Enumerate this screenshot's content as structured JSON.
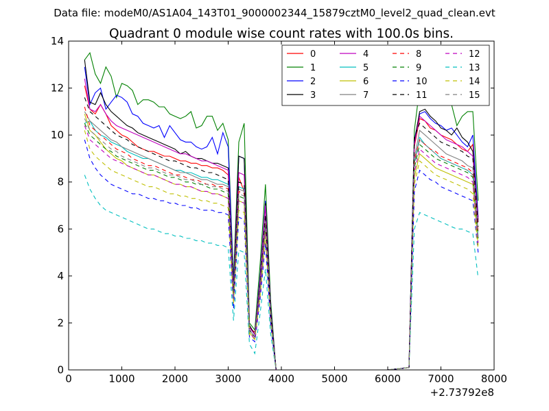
{
  "chart_data": {
    "type": "line",
    "suptitle": "Data file: modeM0/AS1A04_143T01_9000002344_15879cztM0_level2_quad_clean.evt",
    "title": "Quadrant 0 module wise count rates with 100.0s bins.",
    "xlabel": "",
    "ylabel": "",
    "x_offset_label": "+2.73792e8",
    "xlim": [
      0,
      8000
    ],
    "ylim": [
      0,
      14
    ],
    "xticks": [
      "0",
      "1000",
      "2000",
      "3000",
      "4000",
      "5000",
      "6000",
      "7000",
      "8000"
    ],
    "yticks": [
      "0",
      "2",
      "4",
      "6",
      "8",
      "10",
      "12",
      "14"
    ],
    "grid": false,
    "legend": {
      "placement": "top-right",
      "columns": 4
    },
    "x": [
      300,
      400,
      500,
      600,
      700,
      800,
      900,
      1000,
      1100,
      1200,
      1300,
      1400,
      1500,
      1600,
      1700,
      1800,
      1900,
      2000,
      2100,
      2200,
      2300,
      2400,
      2500,
      2600,
      2700,
      2800,
      2900,
      3000,
      3100,
      3200,
      3300,
      3400,
      3500,
      3600,
      3700,
      3800,
      3900,
      4000,
      5000,
      6000,
      6400,
      6500,
      6600,
      6700,
      6800,
      6900,
      7000,
      7100,
      7200,
      7300,
      7400,
      7500,
      7600,
      7700
    ],
    "series": [
      {
        "name": "0",
        "color": "#ff0000",
        "dash": "solid",
        "values": [
          12.1,
          11.1,
          10.9,
          11.3,
          10.9,
          10.4,
          10.2,
          10.0,
          9.9,
          9.7,
          9.5,
          9.4,
          9.3,
          9.3,
          9.2,
          9.1,
          9.1,
          9.0,
          8.9,
          8.9,
          8.8,
          8.8,
          8.7,
          8.7,
          8.6,
          8.6,
          8.5,
          8.3,
          3.4,
          8.2,
          7.6,
          1.8,
          1.6,
          3.8,
          7.0,
          2.5,
          0.0,
          0.0,
          0.0,
          0.0,
          0.1,
          9.5,
          10.7,
          10.6,
          10.3,
          10.2,
          10.0,
          9.9,
          9.8,
          9.6,
          9.4,
          9.3,
          9.6,
          6.3
        ]
      },
      {
        "name": "1",
        "color": "#008000",
        "dash": "solid",
        "values": [
          13.2,
          13.5,
          12.6,
          12.2,
          12.9,
          12.5,
          11.6,
          12.2,
          12.1,
          11.9,
          11.3,
          11.5,
          11.5,
          11.4,
          11.2,
          11.2,
          10.9,
          10.8,
          10.7,
          10.8,
          11.0,
          10.3,
          10.4,
          10.8,
          10.8,
          10.2,
          10.5,
          9.8,
          3.9,
          9.7,
          10.5,
          2.0,
          1.7,
          4.5,
          7.9,
          2.9,
          0.0,
          0.0,
          0.0,
          0.0,
          0.1,
          10.2,
          12.0,
          11.6,
          11.9,
          11.7,
          11.5,
          11.4,
          11.3,
          10.4,
          10.8,
          11.0,
          11.0,
          7.2
        ]
      },
      {
        "name": "2",
        "color": "#0000ff",
        "dash": "solid",
        "values": [
          12.9,
          11.3,
          11.8,
          12.0,
          11.1,
          11.4,
          11.7,
          11.6,
          11.4,
          10.9,
          10.8,
          10.5,
          10.4,
          10.3,
          10.4,
          9.9,
          10.4,
          10.1,
          9.8,
          9.7,
          9.7,
          9.5,
          9.4,
          9.5,
          9.9,
          9.2,
          10.1,
          9.5,
          3.6,
          9.1,
          9.0,
          1.9,
          1.5,
          4.0,
          7.2,
          2.6,
          0.0,
          0.0,
          0.0,
          0.0,
          0.1,
          9.8,
          10.9,
          11.0,
          10.7,
          10.5,
          10.4,
          10.2,
          10.3,
          10.0,
          9.7,
          9.5,
          10.0,
          6.5
        ]
      },
      {
        "name": "3",
        "color": "#000000",
        "dash": "solid",
        "values": [
          13.2,
          11.4,
          11.3,
          11.8,
          11.3,
          11.0,
          10.8,
          10.6,
          10.4,
          10.3,
          10.1,
          10.0,
          9.9,
          9.8,
          9.7,
          9.6,
          9.5,
          9.4,
          9.2,
          9.3,
          9.1,
          9.0,
          9.0,
          8.9,
          8.8,
          8.8,
          8.7,
          8.6,
          3.5,
          9.1,
          9.0,
          1.9,
          1.5,
          3.9,
          7.1,
          2.6,
          0.0,
          0.0,
          0.0,
          0.0,
          0.1,
          9.7,
          11.0,
          11.1,
          10.8,
          10.6,
          10.3,
          10.2,
          10.0,
          10.3,
          9.9,
          9.7,
          9.3,
          6.4
        ]
      },
      {
        "name": "4",
        "color": "#bf00bf",
        "dash": "solid",
        "values": [
          12.4,
          11.1,
          11.0,
          11.3,
          10.9,
          10.6,
          10.4,
          10.3,
          10.2,
          10.1,
          10.0,
          9.9,
          9.8,
          9.7,
          9.6,
          9.5,
          9.4,
          9.3,
          9.2,
          9.2,
          9.1,
          9.0,
          8.9,
          8.9,
          8.8,
          8.7,
          8.6,
          8.5,
          3.4,
          8.4,
          8.3,
          1.8,
          1.5,
          3.8,
          7.0,
          2.5,
          0.0,
          0.0,
          0.0,
          0.0,
          0.1,
          9.6,
          10.8,
          10.6,
          10.4,
          10.2,
          10.0,
          9.8,
          9.7,
          9.6,
          9.5,
          9.3,
          9.1,
          6.3
        ]
      },
      {
        "name": "5",
        "color": "#00bfbf",
        "dash": "solid",
        "values": [
          10.5,
          10.6,
          10.2,
          10.0,
          9.9,
          9.7,
          9.6,
          9.5,
          9.3,
          9.2,
          9.1,
          9.0,
          9.0,
          8.9,
          8.8,
          8.7,
          8.6,
          8.5,
          8.5,
          8.4,
          8.4,
          8.3,
          8.2,
          8.2,
          8.1,
          8.1,
          8.0,
          7.9,
          3.1,
          7.8,
          7.7,
          1.7,
          1.4,
          3.5,
          6.4,
          2.3,
          0.0,
          0.0,
          0.0,
          0.0,
          0.1,
          8.8,
          9.9,
          9.6,
          9.4,
          9.2,
          9.0,
          8.9,
          8.8,
          8.7,
          8.6,
          8.5,
          8.3,
          5.7
        ]
      },
      {
        "name": "6",
        "color": "#bfbf00",
        "dash": "solid",
        "values": [
          10.9,
          10.2,
          10.0,
          9.7,
          9.4,
          9.2,
          9.0,
          8.9,
          8.7,
          8.6,
          8.5,
          8.4,
          8.3,
          8.3,
          8.2,
          8.1,
          8.0,
          7.9,
          7.9,
          7.8,
          7.8,
          7.7,
          7.6,
          7.6,
          7.5,
          7.5,
          7.4,
          7.3,
          2.9,
          7.2,
          7.1,
          1.6,
          1.3,
          3.3,
          6.0,
          2.1,
          0.0,
          0.0,
          0.0,
          0.0,
          0.1,
          8.2,
          9.2,
          9.0,
          8.8,
          8.6,
          8.5,
          8.4,
          8.3,
          8.2,
          8.1,
          8.0,
          7.9,
          5.3
        ]
      },
      {
        "name": "7",
        "color": "#808080",
        "dash": "solid",
        "values": [
          11.0,
          10.6,
          10.4,
          10.2,
          10.0,
          9.8,
          9.7,
          9.5,
          9.4,
          9.3,
          9.2,
          9.1,
          9.0,
          8.9,
          8.8,
          8.7,
          8.6,
          8.5,
          8.4,
          8.4,
          8.3,
          8.2,
          8.1,
          8.1,
          8.0,
          7.9,
          7.9,
          7.8,
          3.1,
          7.7,
          7.6,
          1.7,
          1.4,
          3.5,
          6.4,
          2.3,
          0.0,
          0.0,
          0.0,
          0.0,
          0.1,
          9.0,
          10.2,
          10.0,
          9.8,
          9.6,
          9.4,
          9.2,
          9.1,
          9.0,
          8.9,
          8.7,
          8.6,
          5.9
        ]
      },
      {
        "name": "8",
        "color": "#ff0000",
        "dash": "dashed",
        "values": [
          11.2,
          10.4,
          10.2,
          10.0,
          9.8,
          9.6,
          9.4,
          9.3,
          9.2,
          9.0,
          8.9,
          8.8,
          8.7,
          8.7,
          8.6,
          8.5,
          8.4,
          8.3,
          8.3,
          8.2,
          8.1,
          8.1,
          8.0,
          7.9,
          7.9,
          7.8,
          7.8,
          7.7,
          3.0,
          7.6,
          7.5,
          1.6,
          1.4,
          3.4,
          6.3,
          2.2,
          0.0,
          0.0,
          0.0,
          0.0,
          0.1,
          8.9,
          9.8,
          9.6,
          9.4,
          9.3,
          9.1,
          9.0,
          8.9,
          8.8,
          8.7,
          8.6,
          8.4,
          5.8
        ]
      },
      {
        "name": "9",
        "color": "#008000",
        "dash": "dashed",
        "values": [
          10.5,
          10.0,
          9.8,
          9.6,
          9.4,
          9.3,
          9.1,
          9.0,
          8.9,
          8.8,
          8.7,
          8.6,
          8.5,
          8.5,
          8.4,
          8.3,
          8.2,
          8.2,
          8.1,
          8.0,
          8.0,
          7.9,
          7.9,
          7.8,
          7.7,
          7.7,
          7.6,
          7.5,
          3.0,
          7.4,
          7.3,
          1.6,
          1.3,
          3.4,
          6.1,
          2.2,
          0.0,
          0.0,
          0.0,
          0.0,
          0.1,
          8.6,
          9.6,
          9.4,
          9.2,
          9.0,
          8.9,
          8.8,
          8.7,
          8.6,
          8.5,
          8.4,
          8.2,
          5.6
        ]
      },
      {
        "name": "10",
        "color": "#0000ff",
        "dash": "dashed",
        "values": [
          9.8,
          9.0,
          8.6,
          8.3,
          8.1,
          7.9,
          7.8,
          7.7,
          7.6,
          7.5,
          7.5,
          7.4,
          7.3,
          7.3,
          7.2,
          7.2,
          7.1,
          7.1,
          7.0,
          7.0,
          6.9,
          6.9,
          6.8,
          6.8,
          6.8,
          6.7,
          6.7,
          6.6,
          2.6,
          6.5,
          6.4,
          1.4,
          1.2,
          3.0,
          5.4,
          1.9,
          0.0,
          0.0,
          0.0,
          0.0,
          0.1,
          7.6,
          8.5,
          8.3,
          8.1,
          8.0,
          7.8,
          7.7,
          7.6,
          7.5,
          7.4,
          7.3,
          7.2,
          5.0
        ]
      },
      {
        "name": "11",
        "color": "#000000",
        "dash": "dashed",
        "values": [
          11.6,
          11.0,
          10.8,
          10.6,
          10.4,
          10.2,
          10.0,
          9.9,
          9.8,
          9.6,
          9.5,
          9.4,
          9.3,
          9.2,
          9.1,
          9.0,
          8.9,
          8.9,
          8.8,
          8.7,
          8.6,
          8.6,
          8.5,
          8.4,
          8.4,
          8.3,
          8.2,
          8.1,
          3.2,
          8.0,
          7.9,
          1.7,
          1.4,
          3.6,
          6.6,
          2.4,
          0.0,
          0.0,
          0.0,
          0.0,
          0.1,
          9.9,
          10.5,
          10.3,
          10.1,
          9.9,
          9.7,
          9.6,
          9.5,
          9.4,
          9.3,
          9.1,
          9.0,
          6.1
        ]
      },
      {
        "name": "12",
        "color": "#bf00bf",
        "dash": "dashed",
        "values": [
          10.4,
          9.8,
          9.6,
          9.4,
          9.2,
          9.0,
          8.9,
          8.8,
          8.7,
          8.6,
          8.5,
          8.4,
          8.3,
          8.3,
          8.2,
          8.1,
          8.0,
          7.9,
          7.9,
          7.8,
          7.8,
          7.7,
          7.6,
          7.6,
          7.5,
          7.5,
          7.4,
          7.3,
          2.9,
          7.2,
          7.1,
          1.6,
          1.3,
          3.3,
          6.0,
          2.1,
          0.0,
          0.0,
          0.0,
          0.0,
          0.1,
          8.4,
          9.4,
          9.2,
          9.0,
          8.8,
          8.7,
          8.6,
          8.5,
          8.4,
          8.3,
          8.2,
          8.0,
          5.4
        ]
      },
      {
        "name": "13",
        "color": "#00bfbf",
        "dash": "dashed",
        "values": [
          8.3,
          7.7,
          7.3,
          7.0,
          6.8,
          6.7,
          6.6,
          6.5,
          6.4,
          6.3,
          6.2,
          6.1,
          6.0,
          6.0,
          5.9,
          5.8,
          5.8,
          5.7,
          5.7,
          5.6,
          5.6,
          5.5,
          5.5,
          5.4,
          5.4,
          5.3,
          5.3,
          5.2,
          2.1,
          5.1,
          5.0,
          1.1,
          0.7,
          2.4,
          4.3,
          1.5,
          0.0,
          0.0,
          0.0,
          0.0,
          0.1,
          6.0,
          6.7,
          6.6,
          6.5,
          6.4,
          6.3,
          6.2,
          6.1,
          6.0,
          6.0,
          5.9,
          5.8,
          3.9
        ]
      },
      {
        "name": "14",
        "color": "#bfbf00",
        "dash": "dashed",
        "values": [
          10.2,
          9.4,
          9.1,
          8.9,
          8.7,
          8.5,
          8.4,
          8.3,
          8.2,
          8.1,
          8.0,
          7.9,
          7.8,
          7.8,
          7.7,
          7.6,
          7.5,
          7.5,
          7.4,
          7.4,
          7.3,
          7.3,
          7.2,
          7.2,
          7.1,
          7.1,
          7.0,
          6.9,
          2.8,
          6.8,
          6.7,
          1.5,
          1.3,
          3.1,
          5.7,
          2.0,
          0.0,
          0.0,
          0.0,
          0.0,
          0.1,
          7.9,
          8.9,
          8.7,
          8.5,
          8.3,
          8.2,
          8.1,
          8.0,
          7.9,
          7.8,
          7.7,
          7.5,
          5.1
        ]
      },
      {
        "name": "15",
        "color": "#808080",
        "dash": "dashed",
        "values": [
          10.7,
          10.2,
          10.0,
          9.8,
          9.6,
          9.4,
          9.3,
          9.1,
          9.0,
          8.9,
          8.8,
          8.7,
          8.6,
          8.6,
          8.5,
          8.4,
          8.3,
          8.3,
          8.2,
          8.1,
          8.1,
          8.0,
          7.9,
          7.9,
          7.8,
          7.8,
          7.7,
          7.6,
          3.0,
          7.5,
          7.4,
          1.6,
          1.4,
          3.4,
          6.2,
          2.2,
          0.0,
          0.0,
          0.0,
          0.0,
          0.1,
          8.7,
          9.8,
          9.6,
          9.4,
          9.2,
          9.0,
          8.9,
          8.8,
          8.7,
          8.6,
          8.5,
          8.3,
          5.6
        ]
      }
    ]
  }
}
